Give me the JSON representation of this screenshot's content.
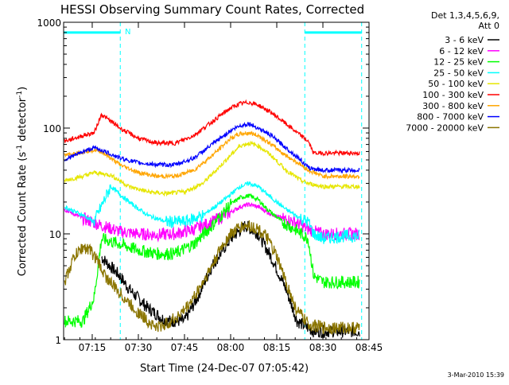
{
  "chart_data": {
    "type": "line",
    "title": "HESSI Observing Summary Count Rates, Corrected",
    "xlabel": "Start Time (24-Dec-07 07:05:42)",
    "ylabel_main": "Corrected Count Rate (s",
    "ylabel_sup1": "-1",
    "ylabel_mid": " detector",
    "ylabel_sup2": "-1",
    "ylabel_end": ")",
    "yscale": "log",
    "ylim": [
      1,
      1000
    ],
    "xlim": [
      7.095,
      8.75
    ],
    "x_ticks": [
      {
        "label": "07:15",
        "value": 7.25
      },
      {
        "label": "07:30",
        "value": 7.5
      },
      {
        "label": "07:45",
        "value": 7.75
      },
      {
        "label": "08:00",
        "value": 8.0
      },
      {
        "label": "08:15",
        "value": 8.25
      },
      {
        "label": "08:30",
        "value": 8.5
      },
      {
        "label": "08:45",
        "value": 8.75
      }
    ],
    "y_ticks": [
      {
        "label": "1",
        "value": 1
      },
      {
        "label": "10",
        "value": 10
      },
      {
        "label": "100",
        "value": 100
      },
      {
        "label": "1000",
        "value": 1000
      }
    ],
    "legend": {
      "header1": "Det 1,3,4,5,6,9,",
      "header2": "Att 0",
      "position": "top-right"
    },
    "annotations": {
      "n_flag": "N",
      "night_periods": [
        {
          "x_start": 7.095,
          "x_end": 7.402
        },
        {
          "x_start": 8.402,
          "x_end": 8.71
        }
      ],
      "night_bar_level": 800
    },
    "footer_date": "3-Mar-2010 15:39",
    "series": [
      {
        "name": "3 - 6 keV",
        "color": "#000000",
        "x": [
          7.3,
          7.4,
          7.45,
          7.55,
          7.65,
          7.75,
          7.82,
          7.9,
          8.0,
          8.08,
          8.15,
          8.22,
          8.3,
          8.36,
          8.45,
          8.52,
          8.6,
          8.7
        ],
        "y": [
          6.0,
          4.0,
          3.0,
          2.0,
          1.5,
          1.5,
          2.5,
          5.0,
          9.0,
          12.0,
          10.0,
          6.0,
          3.0,
          1.5,
          1.2,
          1.2,
          1.2,
          1.2
        ]
      },
      {
        "name": "6 - 12 keV",
        "color": "#ff00ff",
        "x": [
          7.1,
          7.2,
          7.3,
          7.4,
          7.5,
          7.6,
          7.7,
          7.8,
          7.9,
          8.0,
          8.05,
          8.1,
          8.15,
          8.2,
          8.28,
          8.35,
          8.42,
          8.5,
          8.6,
          8.7
        ],
        "y": [
          17,
          14,
          12,
          10.5,
          10,
          9.8,
          10,
          11,
          13,
          16,
          18,
          19,
          18,
          16,
          14,
          13,
          11,
          10,
          10,
          10
        ]
      },
      {
        "name": "12 - 25 keV",
        "color": "#00ff00",
        "x": [
          7.1,
          7.2,
          7.26,
          7.3,
          7.4,
          7.5,
          7.6,
          7.7,
          7.8,
          7.9,
          8.0,
          8.05,
          8.1,
          8.15,
          8.2,
          8.28,
          8.35,
          8.42,
          8.45,
          8.5,
          8.6,
          8.7
        ],
        "y": [
          1.5,
          1.5,
          2.5,
          9,
          8,
          7,
          6.5,
          6.5,
          8,
          12,
          19,
          22,
          23,
          21,
          17,
          13,
          11,
          9,
          4,
          3.5,
          3.5,
          3.5
        ]
      },
      {
        "name": "25 - 50 keV",
        "color": "#00ffff",
        "x": [
          7.1,
          7.2,
          7.26,
          7.35,
          7.45,
          7.55,
          7.65,
          7.75,
          7.85,
          7.95,
          8.05,
          8.1,
          8.15,
          8.22,
          8.3,
          8.38,
          8.42,
          8.45,
          8.5,
          8.6,
          8.7
        ],
        "y": [
          18,
          15,
          13,
          28,
          20,
          15,
          13,
          13,
          15,
          20,
          28,
          30,
          28,
          22,
          17,
          14,
          13,
          10,
          9,
          9.5,
          9.5
        ]
      },
      {
        "name": "50 - 100 keV",
        "color": "#e6e600",
        "x": [
          7.1,
          7.2,
          7.26,
          7.35,
          7.45,
          7.55,
          7.65,
          7.75,
          7.85,
          7.95,
          8.05,
          8.1,
          8.15,
          8.22,
          8.3,
          8.38,
          8.42,
          8.5,
          8.6,
          8.7
        ],
        "y": [
          32,
          35,
          38,
          36,
          28,
          25,
          24,
          25,
          30,
          45,
          68,
          72,
          68,
          55,
          40,
          32,
          30,
          28,
          28,
          28
        ]
      },
      {
        "name": "100 - 300 keV",
        "color": "#ff0000",
        "x": [
          7.1,
          7.2,
          7.26,
          7.3,
          7.4,
          7.5,
          7.6,
          7.7,
          7.8,
          7.9,
          8.0,
          8.05,
          8.1,
          8.15,
          8.22,
          8.3,
          8.38,
          8.42,
          8.45,
          8.5,
          8.6,
          8.7
        ],
        "y": [
          75,
          85,
          90,
          135,
          100,
          80,
          72,
          72,
          85,
          115,
          155,
          170,
          175,
          165,
          140,
          110,
          85,
          75,
          58,
          58,
          58,
          58
        ]
      },
      {
        "name": "300 - 800 keV",
        "color": "#ffa500",
        "x": [
          7.1,
          7.2,
          7.26,
          7.3,
          7.4,
          7.5,
          7.6,
          7.7,
          7.8,
          7.9,
          8.0,
          8.05,
          8.1,
          8.15,
          8.22,
          8.3,
          8.38,
          8.42,
          8.5,
          8.6,
          8.7
        ],
        "y": [
          55,
          60,
          62,
          60,
          45,
          38,
          35,
          35,
          40,
          55,
          80,
          88,
          90,
          85,
          70,
          55,
          45,
          40,
          35,
          35,
          35
        ]
      },
      {
        "name": "800 - 7000 keV",
        "color": "#0000ff",
        "x": [
          7.1,
          7.2,
          7.26,
          7.3,
          7.4,
          7.5,
          7.6,
          7.7,
          7.8,
          7.9,
          8.0,
          8.05,
          8.1,
          8.15,
          8.22,
          8.3,
          8.38,
          8.42,
          8.5,
          8.6,
          8.7
        ],
        "y": [
          50,
          60,
          65,
          62,
          52,
          47,
          45,
          45,
          52,
          70,
          95,
          105,
          110,
          100,
          85,
          65,
          50,
          42,
          40,
          40,
          40
        ]
      },
      {
        "name": "7000 - 20000 keV",
        "color": "#8b7500",
        "x": [
          7.1,
          7.15,
          7.2,
          7.24,
          7.28,
          7.32,
          7.38,
          7.45,
          7.5,
          7.55,
          7.6,
          7.65,
          7.7,
          7.75,
          7.8,
          7.85,
          7.9,
          7.95,
          8.0,
          8.05,
          8.1,
          8.15,
          8.2,
          8.25,
          8.3,
          8.35,
          8.42,
          8.5,
          8.6,
          8.7
        ],
        "y": [
          3.5,
          6.0,
          7.5,
          7.0,
          5.5,
          4.0,
          3.0,
          2.2,
          1.8,
          1.5,
          1.3,
          1.4,
          1.6,
          1.9,
          2.5,
          3.5,
          5.0,
          7.5,
          10.0,
          11.5,
          12.0,
          11.0,
          9.0,
          6.0,
          3.5,
          2.0,
          1.4,
          1.3,
          1.3,
          1.3
        ]
      }
    ]
  }
}
